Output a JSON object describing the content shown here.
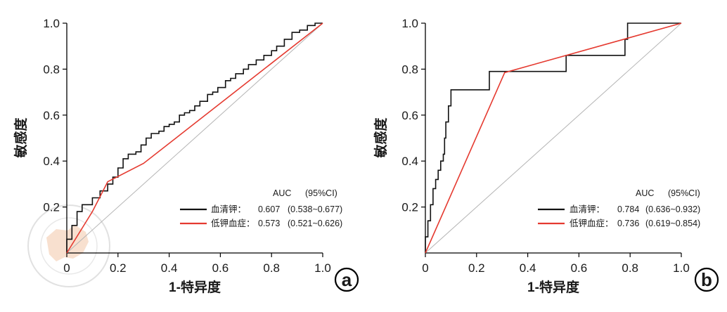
{
  "watermark": {
    "text": "中华医学会 CHINESE MEDICAL ASSOCIATION"
  },
  "chart_data": [
    {
      "type": "line",
      "panel_label": "a",
      "xlabel": "1-特异度",
      "ylabel": "敏感度",
      "xlim": [
        0,
        1
      ],
      "ylim": [
        0,
        1
      ],
      "x_ticks": [
        "0",
        "0.2",
        "0.4",
        "0.6",
        "0.8",
        "1.0"
      ],
      "y_ticks": [
        "0.2",
        "0.4",
        "0.6",
        "0.8",
        "1.0"
      ],
      "grid": false,
      "legend": {
        "placement": "bottom-right",
        "header_auc": "AUC",
        "header_ci": "(95%CI)"
      },
      "reference_line": {
        "x": [
          0,
          1
        ],
        "y": [
          0,
          1
        ],
        "color": "#b4b4b4"
      },
      "series": [
        {
          "name": "血清钾：",
          "auc": "0.607",
          "ci": "(0.538~0.677)",
          "color": "#111111",
          "x": [
            0.0,
            0.0,
            0.02,
            0.02,
            0.04,
            0.04,
            0.06,
            0.06,
            0.1,
            0.1,
            0.13,
            0.13,
            0.16,
            0.16,
            0.18,
            0.18,
            0.2,
            0.2,
            0.22,
            0.22,
            0.24,
            0.24,
            0.27,
            0.27,
            0.29,
            0.29,
            0.31,
            0.31,
            0.33,
            0.33,
            0.36,
            0.36,
            0.38,
            0.38,
            0.4,
            0.4,
            0.42,
            0.42,
            0.44,
            0.44,
            0.46,
            0.46,
            0.48,
            0.48,
            0.5,
            0.5,
            0.52,
            0.52,
            0.55,
            0.55,
            0.57,
            0.57,
            0.59,
            0.59,
            0.62,
            0.62,
            0.64,
            0.64,
            0.66,
            0.66,
            0.69,
            0.69,
            0.71,
            0.71,
            0.74,
            0.74,
            0.77,
            0.77,
            0.8,
            0.8,
            0.82,
            0.82,
            0.85,
            0.85,
            0.88,
            0.88,
            0.91,
            0.91,
            0.94,
            0.94,
            0.97,
            0.97,
            1.0
          ],
          "y": [
            0.0,
            0.06,
            0.06,
            0.12,
            0.12,
            0.18,
            0.18,
            0.21,
            0.21,
            0.24,
            0.24,
            0.27,
            0.27,
            0.3,
            0.3,
            0.33,
            0.33,
            0.37,
            0.37,
            0.41,
            0.41,
            0.43,
            0.43,
            0.44,
            0.44,
            0.47,
            0.47,
            0.5,
            0.5,
            0.52,
            0.52,
            0.53,
            0.53,
            0.55,
            0.55,
            0.56,
            0.56,
            0.57,
            0.57,
            0.6,
            0.6,
            0.61,
            0.61,
            0.62,
            0.62,
            0.64,
            0.64,
            0.66,
            0.66,
            0.69,
            0.69,
            0.7,
            0.7,
            0.72,
            0.72,
            0.75,
            0.75,
            0.76,
            0.76,
            0.78,
            0.78,
            0.8,
            0.8,
            0.82,
            0.82,
            0.84,
            0.84,
            0.86,
            0.86,
            0.88,
            0.88,
            0.9,
            0.9,
            0.93,
            0.93,
            0.96,
            0.96,
            0.97,
            0.97,
            0.99,
            0.99,
            1.0,
            1.0
          ]
        },
        {
          "name": "低钾血症：",
          "auc": "0.573",
          "ci": "(0.521~0.626)",
          "color": "#e53a30",
          "x": [
            0,
            0.1,
            0.16,
            0.3,
            1.0
          ],
          "y": [
            0,
            0.18,
            0.31,
            0.39,
            1.0
          ]
        }
      ]
    },
    {
      "type": "line",
      "panel_label": "b",
      "xlabel": "1-特异度",
      "ylabel": "敏感度",
      "xlim": [
        0,
        1
      ],
      "ylim": [
        0,
        1
      ],
      "x_ticks": [
        "0",
        "0.2",
        "0.4",
        "0.6",
        "0.8",
        "1.0"
      ],
      "y_ticks": [
        "0.2",
        "0.4",
        "0.6",
        "0.8",
        "1.0"
      ],
      "grid": false,
      "legend": {
        "placement": "bottom-right",
        "header_auc": "AUC",
        "header_ci": "(95%CI)"
      },
      "reference_line": {
        "x": [
          0,
          1
        ],
        "y": [
          0,
          1
        ],
        "color": "#b4b4b4"
      },
      "series": [
        {
          "name": "血清钾：",
          "auc": "0.784",
          "ci": "(0.636~0.932)",
          "color": "#111111",
          "x": [
            0.0,
            0.0,
            0.01,
            0.01,
            0.02,
            0.02,
            0.03,
            0.03,
            0.04,
            0.04,
            0.05,
            0.05,
            0.06,
            0.06,
            0.07,
            0.07,
            0.075,
            0.075,
            0.08,
            0.08,
            0.09,
            0.09,
            0.1,
            0.1,
            0.11,
            0.11,
            0.25,
            0.25,
            0.55,
            0.55,
            0.78,
            0.78,
            0.79,
            0.79,
            1.0
          ],
          "y": [
            0.0,
            0.07,
            0.07,
            0.14,
            0.14,
            0.21,
            0.21,
            0.28,
            0.28,
            0.32,
            0.32,
            0.36,
            0.36,
            0.4,
            0.4,
            0.43,
            0.43,
            0.5,
            0.5,
            0.57,
            0.57,
            0.64,
            0.64,
            0.71,
            0.71,
            0.71,
            0.71,
            0.79,
            0.79,
            0.86,
            0.86,
            0.93,
            0.93,
            1.0,
            1.0
          ]
        },
        {
          "name": "低钾血症：",
          "auc": "0.736",
          "ci": "(0.619~0.854)",
          "color": "#e53a30",
          "x": [
            0,
            0.31,
            1.0
          ],
          "y": [
            0,
            0.785,
            1.0
          ]
        }
      ]
    }
  ]
}
